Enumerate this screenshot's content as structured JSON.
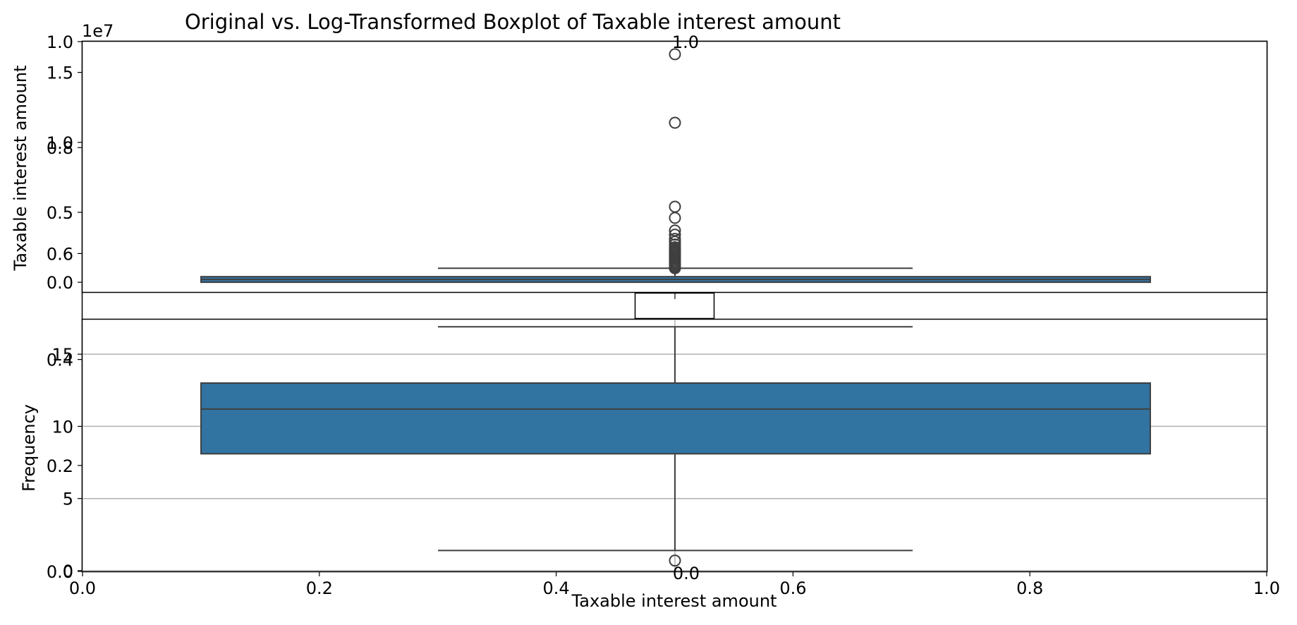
{
  "title": "Original vs. Log-Transformed Boxplot of Taxable interest amount",
  "xlabel": "Taxable interest amount",
  "chart_data": [
    {
      "type": "box",
      "panel": "outer-figure-axes",
      "xlim": [
        0,
        1
      ],
      "ylim": [
        0,
        1
      ],
      "xticks": [
        "0.0",
        "0.2",
        "0.4",
        "0.6",
        "0.8",
        "1.0"
      ],
      "yticks": [
        "0.0",
        "0.2",
        "0.4",
        "0.6",
        "0.8",
        "1.0"
      ],
      "xlabel": "Taxable interest amount",
      "ylabel": "Frequency",
      "grid": true
    },
    {
      "type": "box",
      "panel": "original",
      "ylabel": "Taxable interest amount",
      "y_offset_label": "1e7",
      "yticks": [
        "0.0",
        "0.5",
        "1.0",
        "1.5"
      ],
      "ylim": [
        -0.07,
        1.72
      ],
      "box": {
        "q1": 0.0,
        "median": 0.02,
        "q3": 0.04,
        "whisker_low": 0.0,
        "whisker_high": 0.1
      },
      "outliers": [
        0.1,
        0.11,
        0.12,
        0.13,
        0.14,
        0.15,
        0.16,
        0.17,
        0.18,
        0.19,
        0.2,
        0.21,
        0.22,
        0.23,
        0.24,
        0.25,
        0.27,
        0.29,
        0.31,
        0.34,
        0.37,
        0.46,
        0.54,
        1.14,
        1.63
      ]
    },
    {
      "type": "box",
      "panel": "log-transformed",
      "yticks": [
        "0",
        "5",
        "10",
        "15"
      ],
      "ylim": [
        0,
        17.4
      ],
      "grid": true,
      "box": {
        "q1": 8.1,
        "median": 11.2,
        "q3": 13.0,
        "whisker_low": 1.4,
        "whisker_high": 16.9
      },
      "outliers": [
        0.7
      ]
    },
    {
      "type": "box",
      "panel": "inset",
      "xticks": [
        "1.0",
        "0.0"
      ],
      "yticks": [
        "1.0",
        "0.0"
      ]
    }
  ],
  "colors": {
    "box_fill": "#3274a1",
    "box_edge": "#3f3f3f",
    "grid": "#b0b0b0"
  }
}
